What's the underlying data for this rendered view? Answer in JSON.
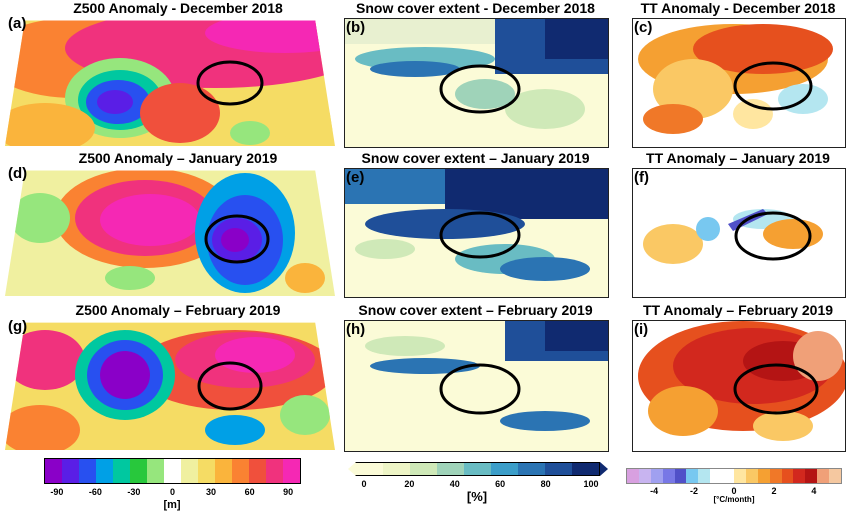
{
  "panels": {
    "a": {
      "letter": "(a)",
      "title": "Z500 Anomaly - December 2018"
    },
    "b": {
      "letter": "(b)",
      "title": "Snow cover extent - December 2018"
    },
    "c": {
      "letter": "(c)",
      "title": "TT Anomaly - December 2018"
    },
    "d": {
      "letter": "(d)",
      "title": "Z500 Anomaly – January 2019"
    },
    "e": {
      "letter": "(e)",
      "title": "Snow cover extent – January 2019"
    },
    "f": {
      "letter": "(f)",
      "title": "TT Anomaly – January 2019"
    },
    "g": {
      "letter": "(g)",
      "title": "Z500 Anomaly – February 2019"
    },
    "h": {
      "letter": "(h)",
      "title": "Snow cover extent – February 2019"
    },
    "i": {
      "letter": "(i)",
      "title": "TT Anomaly – February 2019"
    }
  },
  "colorbars": {
    "z500": {
      "ticks": [
        "-90",
        "-60",
        "-30",
        "0",
        "30",
        "60",
        "90"
      ],
      "unit": "[m]",
      "colors": [
        "#8a00c8",
        "#5a1ee6",
        "#2850f0",
        "#00a0e6",
        "#00c8a0",
        "#28c83c",
        "#96e67d",
        "#ffffff",
        "#f0f0a0",
        "#f5dc64",
        "#fab43c",
        "#fa8232",
        "#f0503c",
        "#f0327d",
        "#f528b4"
      ]
    },
    "snow": {
      "ticks": [
        "0",
        "20",
        "40",
        "60",
        "80",
        "100"
      ],
      "unit": "[%]",
      "colors": [
        "#fbfbd7",
        "#eef5c6",
        "#cfe9b8",
        "#9fd3b9",
        "#69bcc3",
        "#3c9ec9",
        "#2b74b3",
        "#1f4f99",
        "#102a70"
      ]
    },
    "tt": {
      "ticks": [
        "-4",
        "-2",
        "0",
        "2",
        "4"
      ],
      "unit": "[°C/month]",
      "colors": [
        "#d8a0e0",
        "#c8b4f0",
        "#a0a0f0",
        "#7878e6",
        "#5050c8",
        "#78c8f0",
        "#b4e6f0",
        "#ffffff",
        "#ffffff",
        "#ffe6a0",
        "#fac864",
        "#f5a032",
        "#f07828",
        "#e6501e",
        "#d2281e",
        "#b41414",
        "#f0a078",
        "#f5c8a0"
      ]
    }
  }
}
